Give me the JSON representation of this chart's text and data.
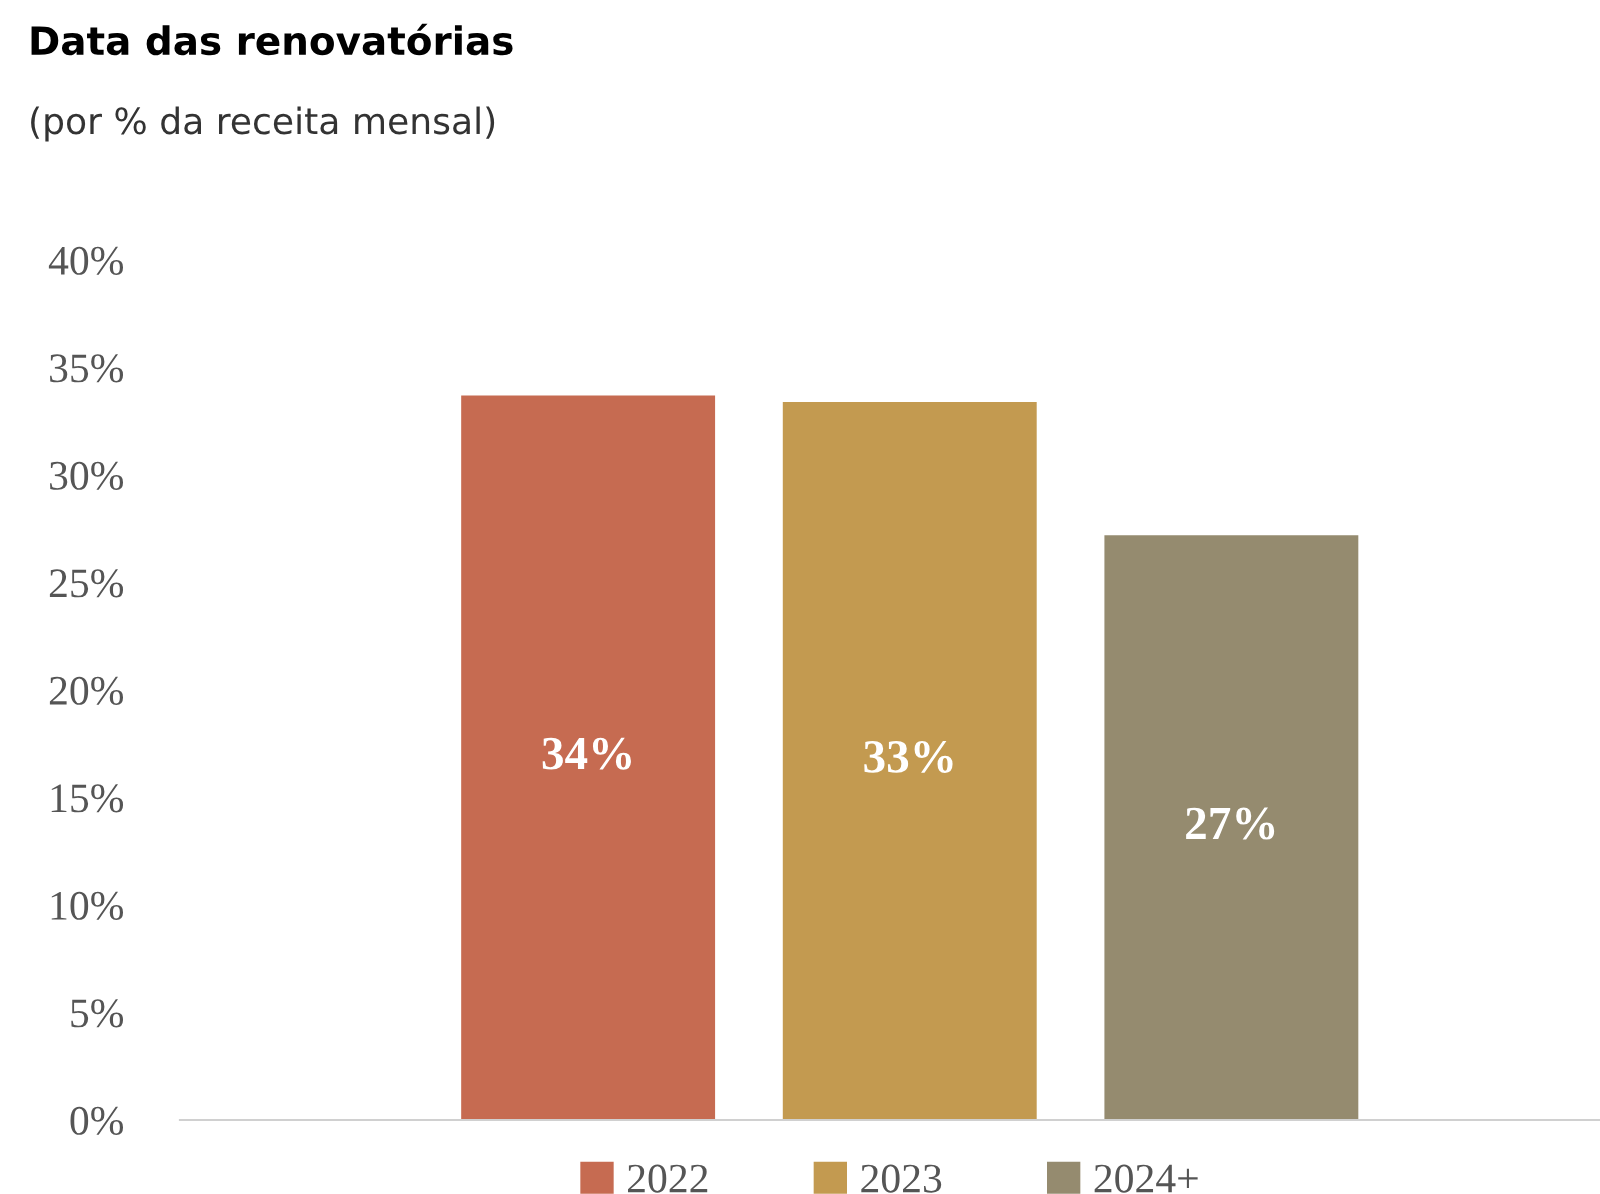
{
  "chart_data": {
    "type": "bar",
    "title": "Data das renovatórias",
    "subtitle": "(por % da receita mensal)",
    "categories": [
      null
    ],
    "series": [
      {
        "name": "2022",
        "color": "#c66b51",
        "values": [
          33.7
        ],
        "value_labels": [
          "34%"
        ]
      },
      {
        "name": "2023",
        "color": "#c39a50",
        "values": [
          33.4
        ],
        "value_labels": [
          "33%"
        ]
      },
      {
        "name": "2024+",
        "color": "#958b6f",
        "values": [
          27.2
        ],
        "value_labels": [
          "27%"
        ]
      }
    ],
    "ylim": [
      0,
      40
    ],
    "yticks": [
      {
        "value": 0,
        "label": "0%"
      },
      {
        "value": 5,
        "label": "5%"
      },
      {
        "value": 10,
        "label": "10%"
      },
      {
        "value": 15,
        "label": "15%"
      },
      {
        "value": 20,
        "label": "20%"
      },
      {
        "value": 25,
        "label": "25%"
      },
      {
        "value": 30,
        "label": "30%"
      },
      {
        "value": 35,
        "label": "35%"
      },
      {
        "value": 40,
        "label": "40%"
      }
    ],
    "grid": false,
    "legend": "bottom"
  }
}
